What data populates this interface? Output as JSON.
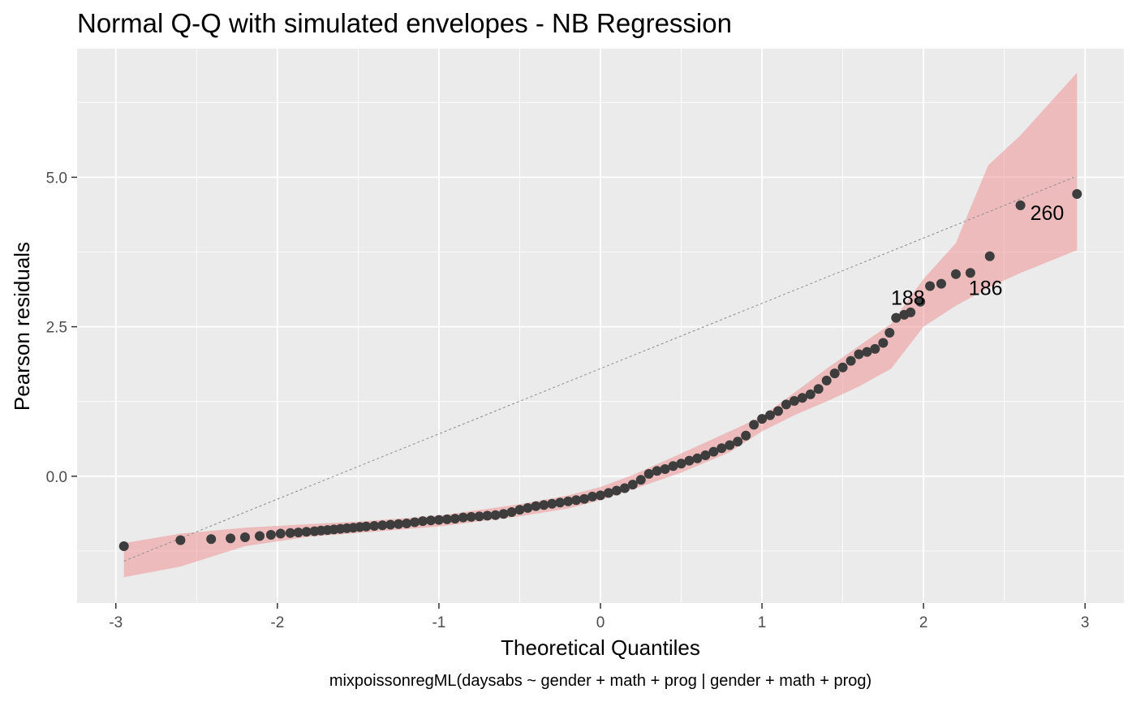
{
  "chart_data": {
    "type": "scatter",
    "title": "Normal Q-Q with simulated envelopes - NB Regression",
    "xlabel": "Theoretical Quantiles",
    "ylabel": "Pearson residuals",
    "caption": "mixpoissonregML(daysabs ~ gender + math + prog | gender + math + prog)",
    "xlim": [
      -3.24,
      3.24
    ],
    "ylim": [
      -2.12,
      7.15
    ],
    "x_ticks": [
      {
        "value": -3,
        "label": "-3"
      },
      {
        "value": -2,
        "label": "-2"
      },
      {
        "value": -1,
        "label": "-1"
      },
      {
        "value": 0,
        "label": "0"
      },
      {
        "value": 1,
        "label": "1"
      },
      {
        "value": 2,
        "label": "2"
      },
      {
        "value": 3,
        "label": "3"
      }
    ],
    "y_ticks": [
      {
        "value": 0,
        "label": "0.0"
      },
      {
        "value": 2.5,
        "label": "2.5"
      },
      {
        "value": 5,
        "label": "5.0"
      }
    ],
    "grid": true,
    "colors": {
      "panel": "#ebebeb",
      "grid": "#ffffff",
      "envelope": "#f08080",
      "points": "#3d3d3d",
      "reference_line": "#8c8c8c"
    },
    "envelope": {
      "x": [
        -2.95,
        -2.6,
        -2.2,
        -1.8,
        -1.5,
        -1.0,
        -0.5,
        -0.2,
        0.0,
        0.2,
        0.5,
        0.8,
        1.0,
        1.2,
        1.4,
        1.6,
        1.8,
        2.0,
        2.2,
        2.4,
        2.6,
        2.95
      ],
      "lower": [
        -1.69,
        -1.51,
        -1.17,
        -1.01,
        -0.95,
        -0.84,
        -0.67,
        -0.54,
        -0.4,
        -0.22,
        0.06,
        0.4,
        0.75,
        1.02,
        1.25,
        1.5,
        1.8,
        2.5,
        2.85,
        3.15,
        3.4,
        3.78
      ],
      "upper": [
        -1.12,
        -0.96,
        -0.86,
        -0.8,
        -0.76,
        -0.66,
        -0.47,
        -0.32,
        -0.18,
        0.02,
        0.38,
        0.75,
        1.0,
        1.4,
        1.8,
        2.18,
        2.55,
        3.3,
        3.9,
        5.2,
        5.7,
        6.75
      ]
    },
    "reference_line": {
      "x": [
        -2.95,
        2.95
      ],
      "y": [
        -1.42,
        5.02
      ]
    },
    "x": [
      -2.95,
      -2.6,
      -2.41,
      -2.29,
      -2.2,
      -2.11,
      -2.04,
      -1.98,
      -1.92,
      -1.87,
      -1.82,
      -1.77,
      -1.73,
      -1.69,
      -1.65,
      -1.61,
      -1.57,
      -1.53,
      -1.49,
      -1.45,
      -1.4,
      -1.35,
      -1.3,
      -1.25,
      -1.2,
      -1.15,
      -1.1,
      -1.05,
      -1.0,
      -0.95,
      -0.9,
      -0.85,
      -0.8,
      -0.75,
      -0.7,
      -0.65,
      -0.6,
      -0.55,
      -0.5,
      -0.45,
      -0.4,
      -0.35,
      -0.3,
      -0.25,
      -0.2,
      -0.15,
      -0.1,
      -0.05,
      0.0,
      0.05,
      0.1,
      0.15,
      0.2,
      0.25,
      0.3,
      0.35,
      0.4,
      0.45,
      0.5,
      0.55,
      0.6,
      0.65,
      0.7,
      0.75,
      0.8,
      0.85,
      0.9,
      0.95,
      1.0,
      1.05,
      1.1,
      1.15,
      1.2,
      1.25,
      1.3,
      1.35,
      1.4,
      1.45,
      1.5,
      1.55,
      1.6,
      1.65,
      1.7,
      1.75,
      1.79,
      1.83,
      1.88,
      1.92,
      1.98,
      2.04,
      2.11,
      2.2,
      2.29,
      2.41,
      2.6,
      2.95
    ],
    "y": [
      -1.17,
      -1.07,
      -1.05,
      -1.04,
      -1.02,
      -1.0,
      -0.98,
      -0.96,
      -0.95,
      -0.94,
      -0.93,
      -0.92,
      -0.91,
      -0.9,
      -0.89,
      -0.88,
      -0.87,
      -0.86,
      -0.85,
      -0.84,
      -0.83,
      -0.82,
      -0.81,
      -0.8,
      -0.79,
      -0.77,
      -0.75,
      -0.74,
      -0.73,
      -0.72,
      -0.71,
      -0.69,
      -0.68,
      -0.67,
      -0.66,
      -0.65,
      -0.63,
      -0.6,
      -0.56,
      -0.53,
      -0.5,
      -0.48,
      -0.46,
      -0.44,
      -0.42,
      -0.4,
      -0.38,
      -0.34,
      -0.32,
      -0.28,
      -0.24,
      -0.2,
      -0.14,
      -0.06,
      0.04,
      0.09,
      0.12,
      0.17,
      0.21,
      0.26,
      0.3,
      0.35,
      0.41,
      0.47,
      0.52,
      0.58,
      0.68,
      0.86,
      0.96,
      1.02,
      1.09,
      1.2,
      1.26,
      1.31,
      1.37,
      1.46,
      1.6,
      1.72,
      1.82,
      1.93,
      2.04,
      2.08,
      2.13,
      2.23,
      2.4,
      2.65,
      2.7,
      2.74,
      2.92,
      3.18,
      3.22,
      3.38,
      3.4,
      3.68,
      4.53,
      4.72
    ],
    "point_labels": [
      {
        "x": 2.41,
        "y": 3.68,
        "text": "186"
      },
      {
        "x": 2.11,
        "y": 3.22,
        "text": "188"
      },
      {
        "x": 2.6,
        "y": 4.53,
        "text": "260"
      }
    ]
  }
}
